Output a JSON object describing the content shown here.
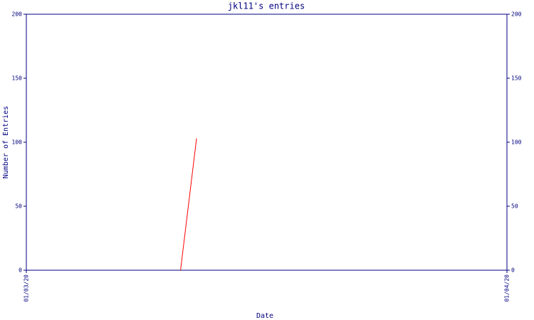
{
  "chart_data": {
    "type": "line",
    "title": "jkl11's entries",
    "xlabel": "Date",
    "ylabel": "Number of Entries",
    "x": [
      7.7,
      8.5
    ],
    "series": [
      {
        "name": "entries",
        "color": "#ff0000",
        "values": [
          0,
          103
        ]
      }
    ],
    "xlim": [
      0,
      24
    ],
    "xticks": [
      {
        "value": 0,
        "label": "01/03/20"
      },
      {
        "value": 24,
        "label": "01/04/20"
      }
    ],
    "ylim": [
      0,
      200
    ],
    "yticks": [
      0,
      50,
      100,
      150,
      200
    ],
    "y2lim": [
      0,
      200
    ],
    "y2ticks": [
      0,
      50,
      100,
      150,
      200
    ],
    "axis_color": "#000080"
  }
}
